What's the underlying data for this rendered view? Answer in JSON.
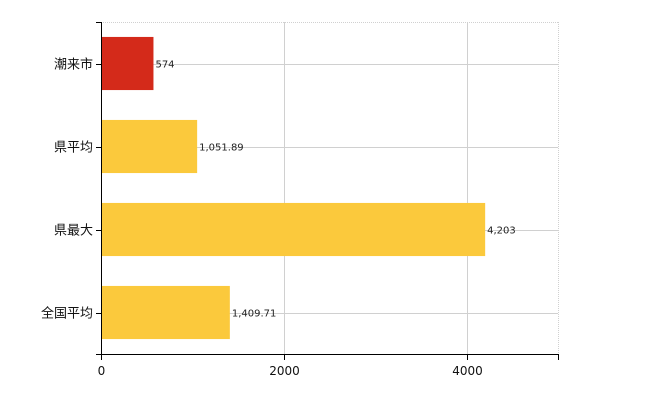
{
  "chart_data": {
    "type": "bar",
    "orientation": "horizontal",
    "categories": [
      "潮来市",
      "県平均",
      "県最大",
      "全国平均"
    ],
    "values": [
      574,
      1051.89,
      4203,
      1409.71
    ],
    "value_labels": [
      "574",
      "1,051.89",
      "4,203",
      "1,409.71"
    ],
    "bar_colors": [
      "#d42a1a",
      "#fbc93c",
      "#fbc93c",
      "#fbc93c"
    ],
    "xlim": [
      0,
      5000
    ],
    "x_ticks": [
      0,
      2000,
      4000
    ],
    "x_tick_labels": [
      "0",
      "2000",
      "4000"
    ],
    "grid": true,
    "title": "",
    "xlabel": "",
    "ylabel": "",
    "legend": "none"
  }
}
